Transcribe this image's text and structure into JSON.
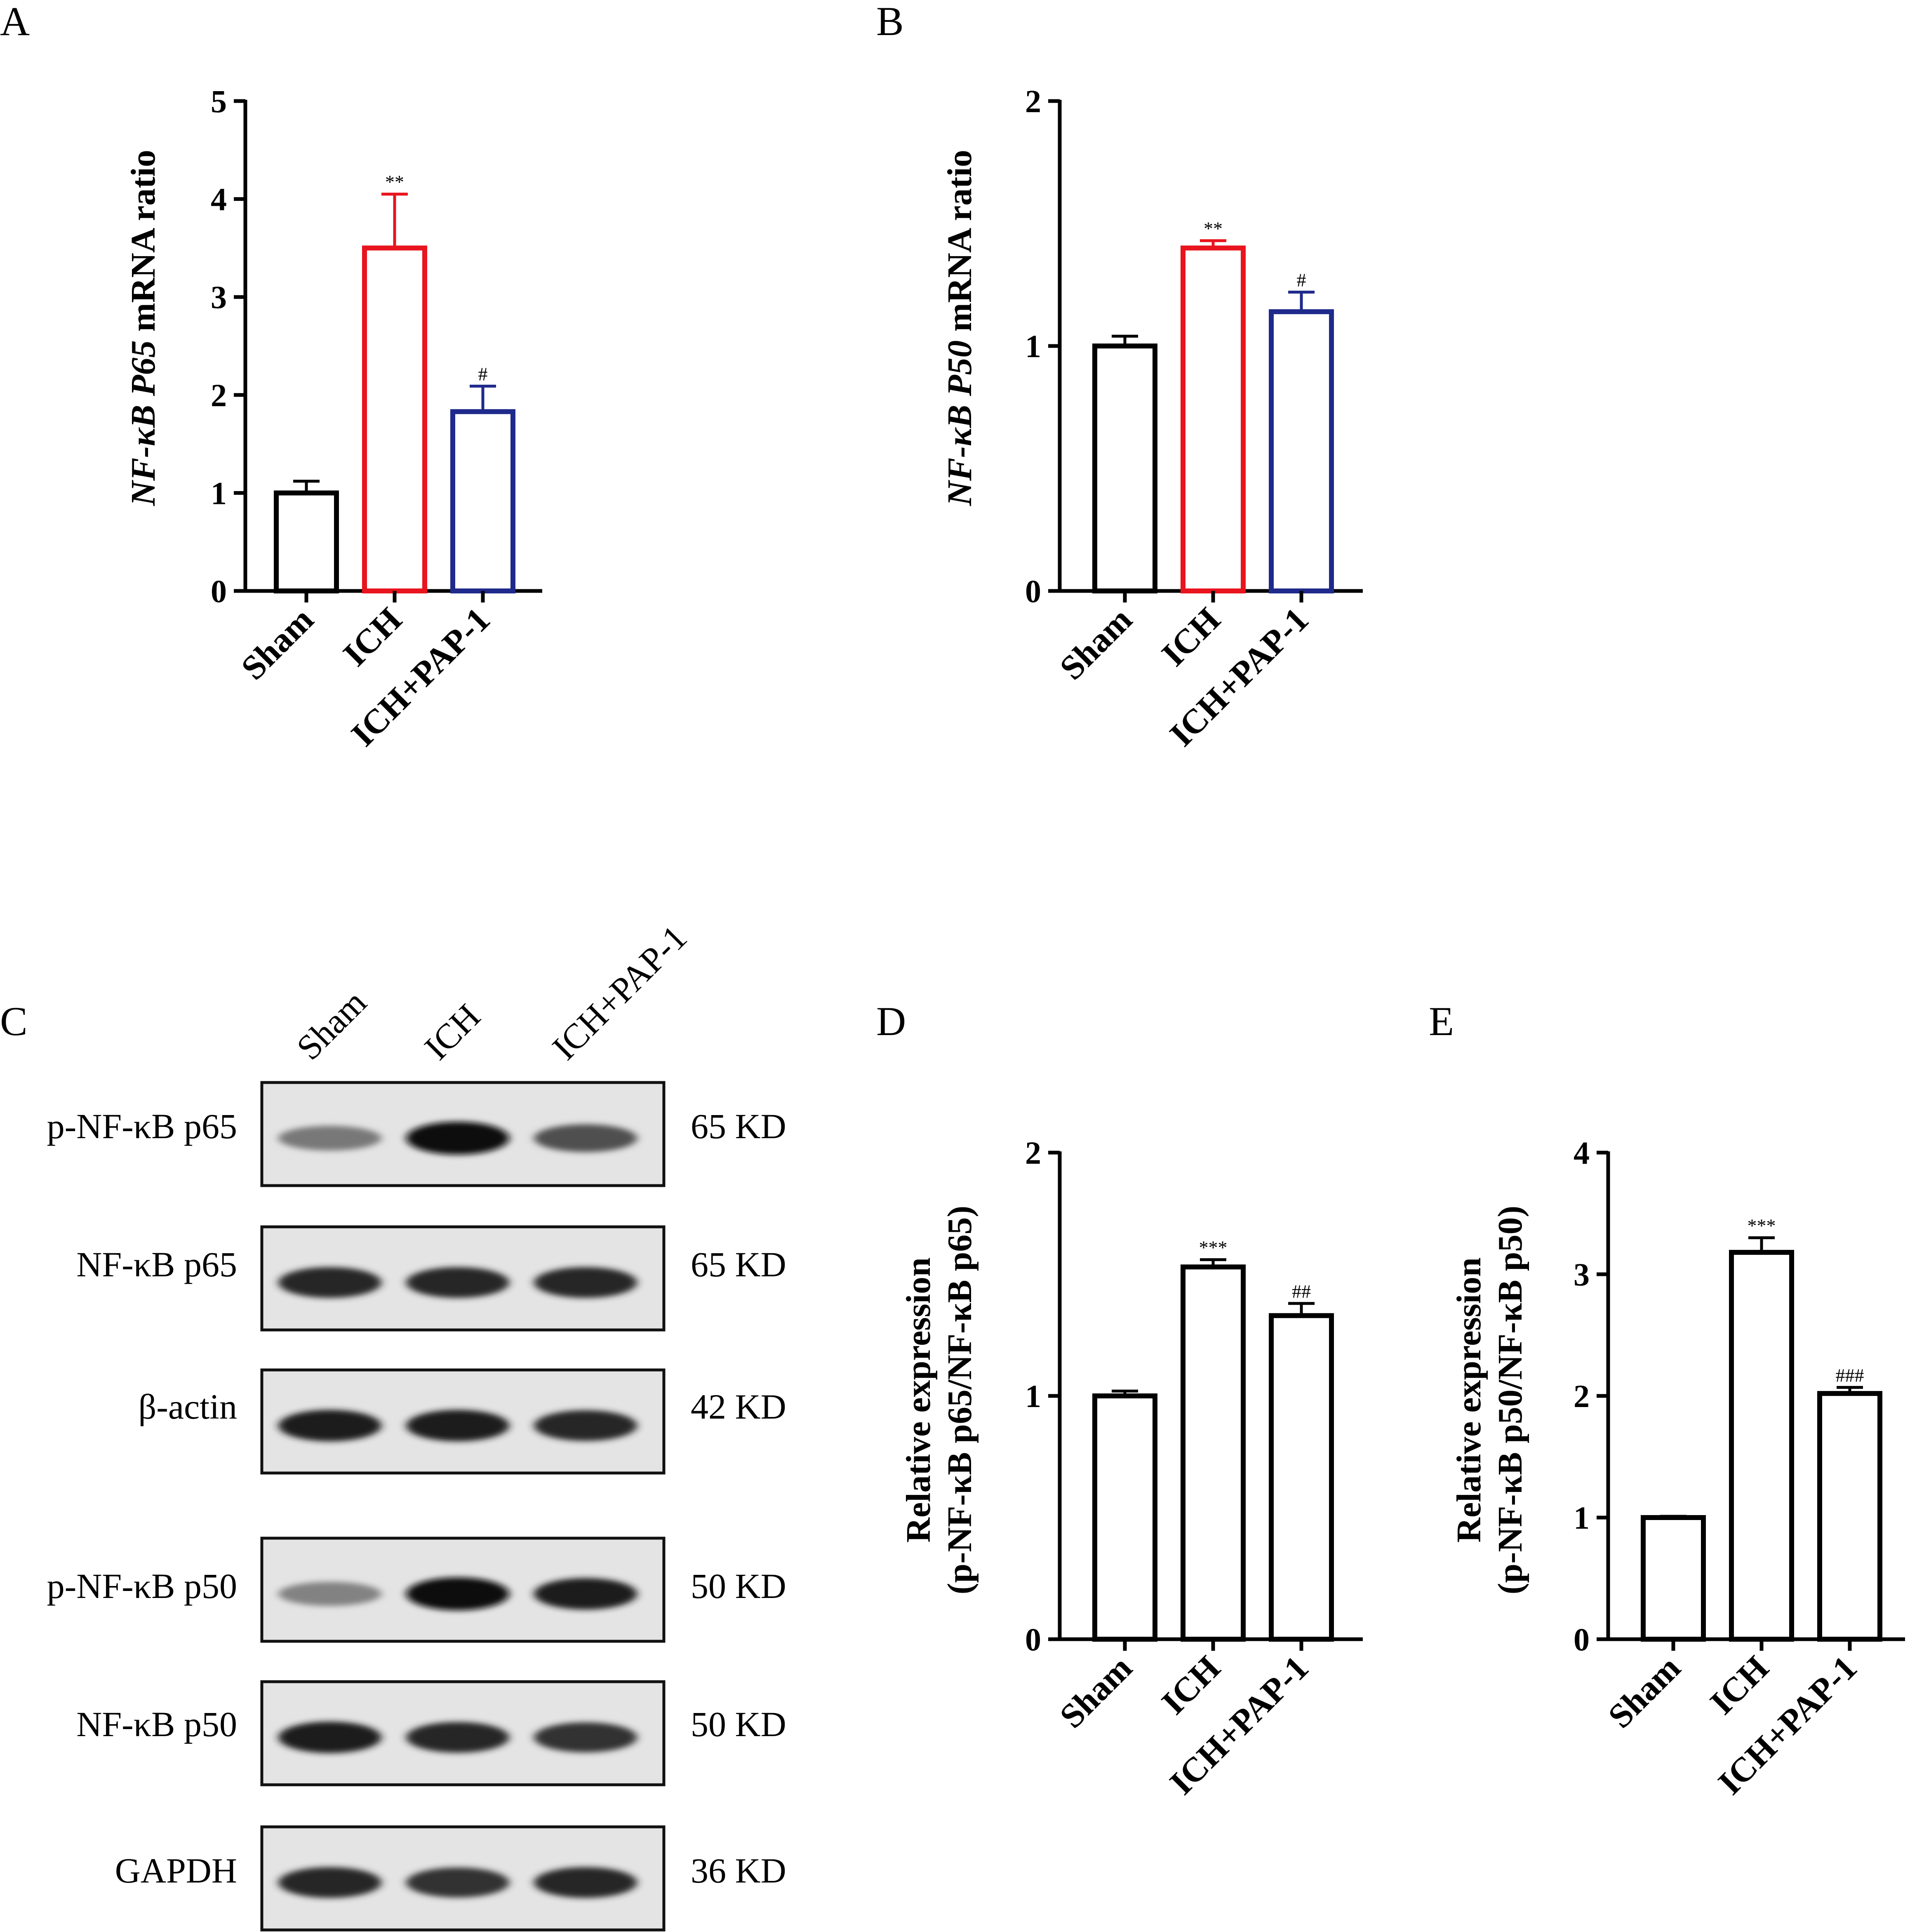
{
  "chart_data": [
    {
      "panel": "A",
      "type": "bar",
      "categories": [
        "Sham",
        "ICH",
        "ICH+PAP-1"
      ],
      "values": [
        1.0,
        3.5,
        1.83
      ],
      "errors": [
        0.12,
        0.55,
        0.26
      ],
      "significance": [
        "",
        "**",
        "#"
      ],
      "bar_colors": [
        "#000000",
        "#e8141e",
        "#1f2a8c"
      ],
      "ylabel_prefix": "NF-κB P65",
      "ylabel_suffix": " mRNA ratio",
      "ylim": [
        0,
        5
      ],
      "yticks": [
        "0",
        "1",
        "2",
        "3",
        "4",
        "5"
      ]
    },
    {
      "panel": "B",
      "type": "bar",
      "categories": [
        "Sham",
        "ICH",
        "ICH+PAP-1"
      ],
      "values": [
        1.0,
        1.4,
        1.14
      ],
      "errors": [
        0.04,
        0.03,
        0.08
      ],
      "significance": [
        "",
        "**",
        "#"
      ],
      "bar_colors": [
        "#000000",
        "#e8141e",
        "#1f2a8c"
      ],
      "ylabel_prefix": "NF-κB P50",
      "ylabel_suffix": " mRNA ratio",
      "ylim": [
        0,
        2
      ],
      "yticks": [
        "0",
        "1",
        "2"
      ]
    },
    {
      "panel": "D",
      "type": "bar",
      "categories": [
        "Sham",
        "ICH",
        "ICH+PAP-1"
      ],
      "values": [
        1.0,
        1.53,
        1.33
      ],
      "errors": [
        0.02,
        0.03,
        0.05
      ],
      "significance": [
        "",
        "***",
        "##"
      ],
      "bar_colors": [
        "#000000",
        "#000000",
        "#000000"
      ],
      "ylabel_line1": "Relative expression",
      "ylabel_line2": "(p-NF-κB p65/NF-κB p65)",
      "ylim": [
        0,
        2
      ],
      "yticks": [
        "0",
        "1",
        "2"
      ]
    },
    {
      "panel": "E",
      "type": "bar",
      "categories": [
        "Sham",
        "ICH",
        "ICH+PAP-1"
      ],
      "values": [
        1.0,
        3.18,
        2.02
      ],
      "errors": [
        0.01,
        0.12,
        0.05
      ],
      "significance": [
        "",
        "***",
        "###"
      ],
      "bar_colors": [
        "#000000",
        "#000000",
        "#000000"
      ],
      "ylabel_line1": "Relative expression",
      "ylabel_line2": "(p-NF-κB p50/NF-κB p50)",
      "ylim": [
        0,
        4
      ],
      "yticks": [
        "0",
        "1",
        "2",
        "3",
        "4"
      ]
    }
  ],
  "blot": {
    "panel": "C",
    "lanes": [
      "Sham",
      "ICH",
      "ICH+PAP-1"
    ],
    "rows": [
      {
        "label": "p-NF-κB p65",
        "size": "65 KD",
        "intensity": [
          0.45,
          1.0,
          0.65
        ]
      },
      {
        "label": "NF-κB p65",
        "size": "65 KD",
        "intensity": [
          0.85,
          0.85,
          0.85
        ]
      },
      {
        "label": "β-actin",
        "size": "42 KD",
        "intensity": [
          0.9,
          0.9,
          0.85
        ]
      },
      {
        "label": "p-NF-κB p50",
        "size": "50 KD",
        "intensity": [
          0.4,
          1.0,
          0.9
        ]
      },
      {
        "label": "NF-κB p50",
        "size": "50 KD",
        "intensity": [
          0.9,
          0.85,
          0.8
        ]
      },
      {
        "label": "GAPDH",
        "size": "36 KD",
        "intensity": [
          0.85,
          0.8,
          0.85
        ]
      }
    ]
  }
}
